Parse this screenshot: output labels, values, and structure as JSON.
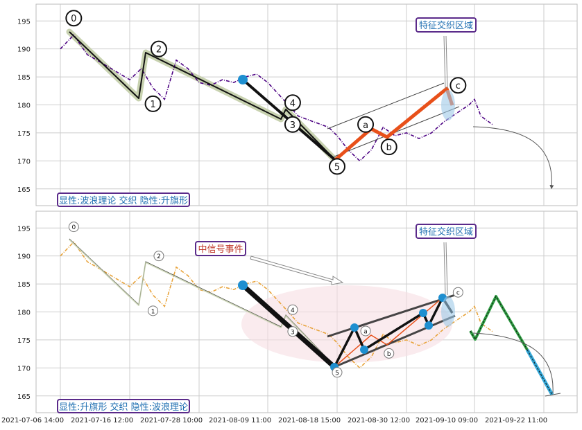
{
  "colors": {
    "price_top": "#4b0082",
    "price_bottom": "#e8a33a",
    "grid": "#cccccc",
    "wave_band": "#c8d2b0",
    "wave_line": "#111111",
    "orange_wave": "#e8501a",
    "blue_dot": "#1e8fd0",
    "ellipse_fill": "#f6dde2",
    "blue_wave": "#34a8d8",
    "green_wave": "#2ea043",
    "tag_border": "#5a2a8a",
    "tag_text_blue": "#1f6fb2",
    "tag_text_red": "#c0392b"
  },
  "x_labels": [
    "2021-07-06 14:00",
    "2021-07-16 12:00",
    "2021-07-28 10:00",
    "2021-08-09 11:00",
    "2021-08-18 15:00",
    "2021-08-30 12:00",
    "2021-09-10 09:00",
    "2021-09-22 11:00"
  ],
  "chart_data": [
    {
      "type": "line",
      "title": "",
      "ylim": [
        162,
        198
      ],
      "y_ticks": [
        165,
        170,
        175,
        180,
        185,
        190,
        195
      ],
      "x_tick_labels": [
        "2021-07-06 14:00",
        "2021-07-16 12:00",
        "2021-07-28 10:00",
        "2021-08-09 11:00",
        "2021-08-18 15:00",
        "2021-08-30 12:00",
        "2021-09-10 09:00",
        "2021-09-22 11:00"
      ],
      "grid": true,
      "series": [
        {
          "x": [
            "2021-07-06 14:00",
            "2021-07-08 12:00",
            "2021-07-10 10:00",
            "2021-07-12 12:00",
            "2021-07-14 12:00",
            "2021-07-16 12:00",
            "2021-07-18 12:00",
            "2021-07-20 12:00",
            "2021-07-22 12:00",
            "2021-07-24 12:00",
            "2021-07-26 12:00",
            "2021-07-28 10:00",
            "2021-07-30 12:00",
            "2021-08-01 12:00",
            "2021-08-03 12:00",
            "2021-08-05 12:00",
            "2021-08-07 12:00",
            "2021-08-09 11:00",
            "2021-08-11 12:00",
            "2021-08-13 12:00",
            "2021-08-15 12:00",
            "2021-08-17 12:00",
            "2021-08-18 15:00",
            "2021-08-20 12:00",
            "2021-08-22 12:00",
            "2021-08-24 12:00",
            "2021-08-26 12:00",
            "2021-08-28 12:00",
            "2021-08-30 12:00",
            "2021-09-01 12:00",
            "2021-09-03 12:00",
            "2021-09-05 12:00",
            "2021-09-07 12:00",
            "2021-09-09 12:00",
            "2021-09-10 09:00",
            "2021-09-11 12:00",
            "2021-09-13 12:00"
          ],
          "values": [
            190,
            192.5,
            189,
            187.5,
            186,
            184.5,
            186.5,
            183,
            181,
            188,
            186.5,
            184,
            183.5,
            184.5,
            184,
            185,
            185.5,
            184,
            181,
            178,
            177,
            176,
            174.5,
            172,
            170,
            172,
            176,
            174.5,
            175,
            174,
            175,
            177,
            178.5,
            180,
            181,
            178,
            176.5
          ]
        }
      ],
      "markers": [
        {
          "label": "0",
          "x": "2021-07-08 12:00",
          "y": 195.5
        },
        {
          "label": "1",
          "x": "2021-07-20 12:00",
          "y": 180.2
        },
        {
          "label": "2",
          "x": "2021-07-21 12:00",
          "y": 190
        },
        {
          "label": "3",
          "x": "2021-08-12 18:00",
          "y": 176.5
        },
        {
          "label": "4",
          "x": "2021-08-12 18:00",
          "y": 180.4
        },
        {
          "label": "5",
          "x": "2021-08-18 15:00",
          "y": 169
        },
        {
          "label": "a",
          "x": "2021-08-23 12:00",
          "y": 176.5
        },
        {
          "label": "b",
          "x": "2021-08-27 12:00",
          "y": 172.5
        },
        {
          "label": "c",
          "x": "2021-09-07 18:00",
          "y": 183.5
        }
      ],
      "annotations": [
        "特征交织区域",
        "显性:波浪理论 交织 隐性:升旗形"
      ]
    },
    {
      "type": "line",
      "title": "",
      "ylim": [
        162,
        198
      ],
      "y_ticks": [
        165,
        170,
        175,
        180,
        185,
        190,
        195
      ],
      "x_tick_labels": [
        "2021-07-06 14:00",
        "2021-07-16 12:00",
        "2021-07-28 10:00",
        "2021-08-09 11:00",
        "2021-08-18 15:00",
        "2021-08-30 12:00",
        "2021-09-10 09:00",
        "2021-09-22 11:00"
      ],
      "grid": true,
      "series": [
        {
          "x": [
            "2021-07-06 14:00",
            "2021-07-08 12:00",
            "2021-07-10 10:00",
            "2021-07-12 12:00",
            "2021-07-14 12:00",
            "2021-07-16 12:00",
            "2021-07-18 12:00",
            "2021-07-20 12:00",
            "2021-07-22 12:00",
            "2021-07-24 12:00",
            "2021-07-26 12:00",
            "2021-07-28 10:00",
            "2021-07-30 12:00",
            "2021-08-01 12:00",
            "2021-08-03 12:00",
            "2021-08-05 12:00",
            "2021-08-07 12:00",
            "2021-08-09 11:00",
            "2021-08-11 12:00",
            "2021-08-13 12:00",
            "2021-08-15 12:00",
            "2021-08-17 12:00",
            "2021-08-18 15:00",
            "2021-08-20 12:00",
            "2021-08-22 12:00",
            "2021-08-24 12:00",
            "2021-08-26 12:00",
            "2021-08-28 12:00",
            "2021-08-30 12:00",
            "2021-09-01 12:00",
            "2021-09-03 12:00",
            "2021-09-05 12:00",
            "2021-09-07 12:00",
            "2021-09-09 12:00",
            "2021-09-10 09:00",
            "2021-09-11 12:00",
            "2021-09-13 12:00"
          ],
          "values": [
            190,
            192.5,
            189,
            187.5,
            186,
            184.5,
            186.5,
            183,
            181,
            188,
            186.5,
            184,
            183.5,
            184.5,
            184,
            185,
            185.5,
            184,
            181,
            178,
            177,
            176,
            174.5,
            172,
            170,
            172,
            176,
            174.5,
            175,
            174,
            175,
            177,
            178.5,
            180,
            181,
            178,
            176.5
          ]
        }
      ],
      "markers": [
        {
          "label": "0",
          "x": "2021-07-08 12:00",
          "y": 195.2
        },
        {
          "label": "1",
          "x": "2021-07-20 12:00",
          "y": 180.2
        },
        {
          "label": "2",
          "x": "2021-07-21 12:00",
          "y": 190
        },
        {
          "label": "3",
          "x": "2021-08-12 18:00",
          "y": 176.5
        },
        {
          "label": "4",
          "x": "2021-08-12 18:00",
          "y": 180.4
        },
        {
          "label": "5",
          "x": "2021-08-18 15:00",
          "y": 169.2
        },
        {
          "label": "a",
          "x": "2021-08-23 12:00",
          "y": 176.6
        },
        {
          "label": "b",
          "x": "2021-08-27 12:00",
          "y": 172.6
        },
        {
          "label": "c",
          "x": "2021-09-07 18:00",
          "y": 183.5
        }
      ],
      "annotations": [
        "特征交织区域",
        "中信号事件",
        "显性:升旗形 交织 隐性:波浪理论"
      ]
    }
  ],
  "tags": {
    "top_feature": "特征交织区域",
    "top_label": "显性:波浪理论 交织 隐性:升旗形",
    "bottom_feature": "特征交织区域",
    "bottom_signal": "中信号事件",
    "bottom_label": "显性:升旗形 交织 隐性:波浪理论"
  },
  "icons": {
    "wave_point": "circle-marker",
    "arrow": "arrow-icon"
  }
}
